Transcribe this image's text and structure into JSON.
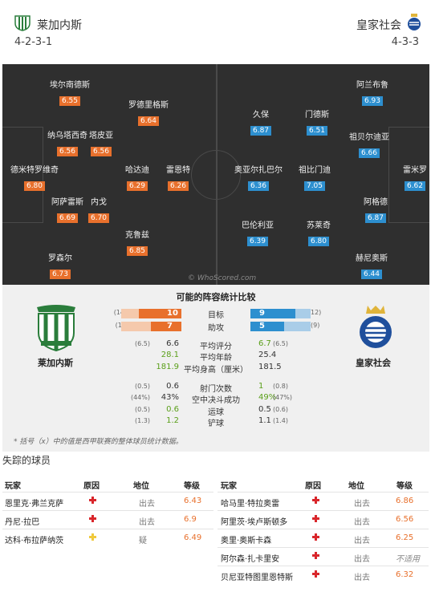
{
  "header": {
    "home_name": "莱加内斯",
    "away_name": "皇家社会",
    "home_formation": "4-2-3-1",
    "away_formation": "4-3-3"
  },
  "pitch": {
    "home_players": [
      {
        "name": "埃尔南德斯",
        "rating": "6.55"
      },
      {
        "name": "罗德里格斯",
        "rating": "6.64"
      },
      {
        "name": "纳乌塔西奇",
        "rating": "6.56"
      },
      {
        "name": "塔皮亚",
        "rating": "6.56"
      },
      {
        "name": "德米特罗维奇",
        "rating": "6.80"
      },
      {
        "name": "哈达迪",
        "rating": "6.29"
      },
      {
        "name": "雷恩特",
        "rating": "6.26"
      },
      {
        "name": "阿萨雷斯",
        "rating": "6.69"
      },
      {
        "name": "内戈",
        "rating": "6.70"
      },
      {
        "name": "克鲁兹",
        "rating": "6.85"
      },
      {
        "name": "罗森尔",
        "rating": "6.73"
      }
    ],
    "away_players": [
      {
        "name": "阿兰布鲁",
        "rating": "6.93"
      },
      {
        "name": "久保",
        "rating": "6.87"
      },
      {
        "name": "门德斯",
        "rating": "6.51"
      },
      {
        "name": "祖贝尔迪亚",
        "rating": "6.66"
      },
      {
        "name": "奥亚尔扎巴尔",
        "rating": "6.36"
      },
      {
        "name": "祖比门迪",
        "rating": "7.05"
      },
      {
        "name": "雷米罗",
        "rating": "6.62"
      },
      {
        "name": "阿格德",
        "rating": "6.87"
      },
      {
        "name": "巴伦利亚",
        "rating": "6.39"
      },
      {
        "name": "苏莱奇",
        "rating": "6.80"
      },
      {
        "name": "赫尼奥斯",
        "rating": "6.44"
      }
    ],
    "watermark": "© WhoScored.com"
  },
  "compare": {
    "title": "可能的阵容统计比较",
    "home_label": "莱加内斯",
    "away_label": "皇家社会",
    "bars": [
      {
        "label": "目标",
        "home": "10",
        "home_par": "(14",
        "away": "9",
        "away_par": "12)",
        "home_frac": 0.71,
        "away_frac": 0.75
      },
      {
        "label": "助攻",
        "home": "7",
        "home_par": "(1!",
        "away": "5",
        "away_par": "(9)",
        "home_frac": 0.5,
        "away_frac": 0.56
      }
    ],
    "stats": [
      {
        "label": "平均评分",
        "home": "6.6",
        "home_par": "(6.5)",
        "away": "6.7",
        "away_par": "(6.5)",
        "home_better": false
      },
      {
        "label": "平均年龄",
        "home": "28.1",
        "home_par": "",
        "away": "25.4",
        "away_par": "",
        "home_better": true
      },
      {
        "label": "平均身高（厘米）",
        "home": "181.9",
        "home_par": "",
        "away": "181.5",
        "away_par": "",
        "home_better": true
      },
      {
        "label": "射门次数",
        "home": "0.6",
        "home_par": "(0.5)",
        "away": "1",
        "away_par": "(0.8)",
        "home_better": false
      },
      {
        "label": "空中决斗成功",
        "home": "43%",
        "home_par": "(44%)",
        "away": "49%",
        "away_par": "(47%)",
        "home_better": false
      },
      {
        "label": "运球",
        "home": "0.6",
        "home_par": "(0.5)",
        "away": "0.5",
        "away_par": "(0.6)",
        "home_better": true
      },
      {
        "label": "铲球",
        "home": "1.2",
        "home_par": "(1.3)",
        "away": "1.1",
        "away_par": "(1.4)",
        "home_better": true
      }
    ],
    "note": "* 括号（x）中的值是西甲联赛的整体球员统计数据。"
  },
  "missing": {
    "title": "失踪的球员",
    "headers": {
      "player": "玩家",
      "reason": "原因",
      "status": "地位",
      "rating": "等级"
    },
    "home": [
      {
        "player": "恩里克·弗兰克萨",
        "status": "出去",
        "rating": "6.43",
        "icon": "injury"
      },
      {
        "player": "丹尼·拉巴",
        "status": "出去",
        "rating": "6.9",
        "icon": "injury"
      },
      {
        "player": "达科·布拉萨纳茨",
        "status": "疑",
        "rating": "6.49",
        "icon": "doubt"
      }
    ],
    "away": [
      {
        "player": "哈马里·特拉奥雷",
        "status": "出去",
        "rating": "6.86",
        "icon": "injury"
      },
      {
        "player": "阿里茨·埃卢斯顿多",
        "status": "出去",
        "rating": "6.56",
        "icon": "injury"
      },
      {
        "player": "奥里·奥斯卡森",
        "status": "出去",
        "rating": "6.25",
        "icon": "injury"
      },
      {
        "player": "阿尔森·扎卡里安",
        "status": "出去",
        "rating": "不适用",
        "icon": "injury"
      },
      {
        "player": "贝尼亚特图里恩特斯",
        "status": "出去",
        "rating": "6.32",
        "icon": "injury"
      }
    ]
  },
  "colors": {
    "home_accent": "#e8702c",
    "away_accent": "#2d8fcf",
    "better": "#5a9f19"
  }
}
